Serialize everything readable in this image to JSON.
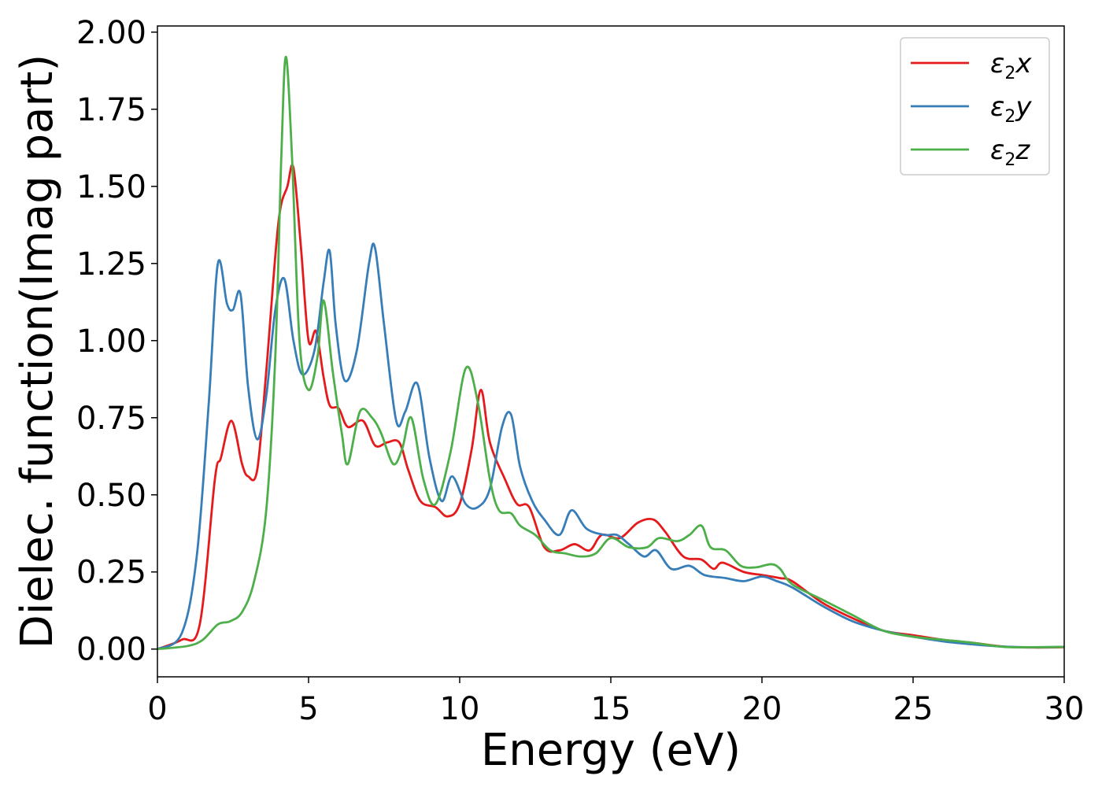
{
  "chart_data": {
    "type": "line",
    "xlabel": "Energy (eV)",
    "ylabel": "Dielec. function(Imag part)",
    "xlim": [
      0,
      30
    ],
    "ylim": [
      -0.09,
      2.02
    ],
    "xticks": [
      0,
      5,
      10,
      15,
      20,
      25,
      30
    ],
    "yticks": [
      0.0,
      0.25,
      0.5,
      0.75,
      1.0,
      1.25,
      1.5,
      1.75,
      2.0
    ],
    "xtick_labels": [
      "0",
      "5",
      "10",
      "15",
      "20",
      "25",
      "30"
    ],
    "ytick_labels": [
      "0.00",
      "0.25",
      "0.50",
      "0.75",
      "1.00",
      "1.25",
      "1.50",
      "1.75",
      "2.00"
    ],
    "grid": false,
    "legend_position": "top-right",
    "series": [
      {
        "name": "ε₂x",
        "legend": {
          "symbol": "ε",
          "sub": "2",
          "var": "x"
        },
        "color": "#e41a1c",
        "points": [
          [
            0,
            0.0
          ],
          [
            0.8,
            0.03
          ],
          [
            1.4,
            0.08
          ],
          [
            1.9,
            0.55
          ],
          [
            2.1,
            0.62
          ],
          [
            2.45,
            0.74
          ],
          [
            2.8,
            0.6
          ],
          [
            3.0,
            0.56
          ],
          [
            3.3,
            0.58
          ],
          [
            3.6,
            0.9
          ],
          [
            4.0,
            1.38
          ],
          [
            4.3,
            1.5
          ],
          [
            4.5,
            1.56
          ],
          [
            4.75,
            1.3
          ],
          [
            5.0,
            1.0
          ],
          [
            5.25,
            1.03
          ],
          [
            5.5,
            0.88
          ],
          [
            5.7,
            0.79
          ],
          [
            6.0,
            0.78
          ],
          [
            6.3,
            0.72
          ],
          [
            6.8,
            0.74
          ],
          [
            7.2,
            0.66
          ],
          [
            7.6,
            0.67
          ],
          [
            8.0,
            0.67
          ],
          [
            8.3,
            0.58
          ],
          [
            8.7,
            0.48
          ],
          [
            9.2,
            0.46
          ],
          [
            9.6,
            0.43
          ],
          [
            10.0,
            0.47
          ],
          [
            10.4,
            0.65
          ],
          [
            10.7,
            0.84
          ],
          [
            11.0,
            0.67
          ],
          [
            11.5,
            0.55
          ],
          [
            11.9,
            0.47
          ],
          [
            12.3,
            0.46
          ],
          [
            12.8,
            0.33
          ],
          [
            13.3,
            0.32
          ],
          [
            13.8,
            0.34
          ],
          [
            14.3,
            0.32
          ],
          [
            14.7,
            0.37
          ],
          [
            15.3,
            0.36
          ],
          [
            15.9,
            0.41
          ],
          [
            16.4,
            0.42
          ],
          [
            16.8,
            0.38
          ],
          [
            17.4,
            0.3
          ],
          [
            18.0,
            0.29
          ],
          [
            18.4,
            0.26
          ],
          [
            18.7,
            0.28
          ],
          [
            19.4,
            0.25
          ],
          [
            20.0,
            0.24
          ],
          [
            20.6,
            0.23
          ],
          [
            21.0,
            0.22
          ],
          [
            22.0,
            0.15
          ],
          [
            23.0,
            0.1
          ],
          [
            24.0,
            0.06
          ],
          [
            25.0,
            0.045
          ],
          [
            26.0,
            0.03
          ],
          [
            27.0,
            0.02
          ],
          [
            28.0,
            0.008
          ],
          [
            29.0,
            0.005
          ],
          [
            30,
            0.006
          ]
        ]
      },
      {
        "name": "ε₂y",
        "legend": {
          "symbol": "ε",
          "sub": "2",
          "var": "y"
        },
        "color": "#377eb8",
        "points": [
          [
            0,
            0.0
          ],
          [
            0.8,
            0.05
          ],
          [
            1.3,
            0.3
          ],
          [
            1.7,
            0.8
          ],
          [
            2.0,
            1.25
          ],
          [
            2.3,
            1.12
          ],
          [
            2.5,
            1.1
          ],
          [
            2.75,
            1.15
          ],
          [
            3.0,
            0.85
          ],
          [
            3.3,
            0.68
          ],
          [
            3.6,
            0.82
          ],
          [
            3.9,
            1.1
          ],
          [
            4.2,
            1.2
          ],
          [
            4.5,
            1.0
          ],
          [
            4.8,
            0.89
          ],
          [
            5.2,
            0.97
          ],
          [
            5.5,
            1.19
          ],
          [
            5.7,
            1.29
          ],
          [
            5.9,
            1.05
          ],
          [
            6.2,
            0.87
          ],
          [
            6.6,
            0.97
          ],
          [
            7.0,
            1.25
          ],
          [
            7.2,
            1.3
          ],
          [
            7.5,
            1.05
          ],
          [
            7.9,
            0.74
          ],
          [
            8.2,
            0.77
          ],
          [
            8.6,
            0.86
          ],
          [
            9.0,
            0.62
          ],
          [
            9.4,
            0.48
          ],
          [
            9.75,
            0.56
          ],
          [
            10.2,
            0.47
          ],
          [
            10.6,
            0.46
          ],
          [
            11.0,
            0.52
          ],
          [
            11.4,
            0.72
          ],
          [
            11.7,
            0.76
          ],
          [
            12.0,
            0.59
          ],
          [
            12.4,
            0.48
          ],
          [
            12.8,
            0.42
          ],
          [
            13.3,
            0.37
          ],
          [
            13.7,
            0.45
          ],
          [
            14.2,
            0.39
          ],
          [
            14.8,
            0.37
          ],
          [
            15.2,
            0.37
          ],
          [
            15.6,
            0.34
          ],
          [
            16.1,
            0.3
          ],
          [
            16.5,
            0.32
          ],
          [
            17.0,
            0.26
          ],
          [
            17.6,
            0.27
          ],
          [
            18.1,
            0.24
          ],
          [
            18.8,
            0.23
          ],
          [
            19.4,
            0.22
          ],
          [
            20.0,
            0.235
          ],
          [
            20.5,
            0.22
          ],
          [
            21.0,
            0.2
          ],
          [
            22.0,
            0.14
          ],
          [
            23.0,
            0.09
          ],
          [
            24.0,
            0.06
          ],
          [
            25.0,
            0.04
          ],
          [
            26.0,
            0.025
          ],
          [
            27.0,
            0.015
          ],
          [
            28.0,
            0.008
          ],
          [
            29.0,
            0.006
          ],
          [
            30,
            0.007
          ]
        ]
      },
      {
        "name": "ε₂z",
        "legend": {
          "symbol": "ε",
          "sub": "2",
          "var": "z"
        },
        "color": "#4daf4a",
        "points": [
          [
            0,
            0.0
          ],
          [
            1.0,
            0.01
          ],
          [
            1.5,
            0.03
          ],
          [
            2.0,
            0.08
          ],
          [
            2.4,
            0.09
          ],
          [
            2.8,
            0.12
          ],
          [
            3.2,
            0.22
          ],
          [
            3.6,
            0.45
          ],
          [
            3.9,
            0.95
          ],
          [
            4.1,
            1.6
          ],
          [
            4.25,
            1.92
          ],
          [
            4.45,
            1.6
          ],
          [
            4.7,
            1.0
          ],
          [
            5.0,
            0.84
          ],
          [
            5.3,
            0.95
          ],
          [
            5.5,
            1.13
          ],
          [
            5.8,
            0.9
          ],
          [
            6.1,
            0.7
          ],
          [
            6.3,
            0.6
          ],
          [
            6.7,
            0.77
          ],
          [
            7.1,
            0.75
          ],
          [
            7.4,
            0.7
          ],
          [
            7.8,
            0.6
          ],
          [
            8.1,
            0.65
          ],
          [
            8.4,
            0.75
          ],
          [
            8.8,
            0.55
          ],
          [
            9.2,
            0.47
          ],
          [
            9.7,
            0.64
          ],
          [
            10.2,
            0.91
          ],
          [
            10.6,
            0.8
          ],
          [
            11.0,
            0.55
          ],
          [
            11.3,
            0.45
          ],
          [
            11.7,
            0.44
          ],
          [
            12.0,
            0.4
          ],
          [
            12.5,
            0.37
          ],
          [
            13.0,
            0.32
          ],
          [
            13.5,
            0.31
          ],
          [
            14.0,
            0.3
          ],
          [
            14.5,
            0.31
          ],
          [
            15.0,
            0.36
          ],
          [
            15.6,
            0.33
          ],
          [
            16.2,
            0.33
          ],
          [
            16.6,
            0.36
          ],
          [
            17.2,
            0.35
          ],
          [
            17.6,
            0.37
          ],
          [
            18.0,
            0.4
          ],
          [
            18.3,
            0.33
          ],
          [
            18.8,
            0.32
          ],
          [
            19.3,
            0.27
          ],
          [
            19.8,
            0.265
          ],
          [
            20.3,
            0.275
          ],
          [
            20.6,
            0.26
          ],
          [
            21.0,
            0.21
          ],
          [
            22.0,
            0.16
          ],
          [
            23.0,
            0.11
          ],
          [
            24.0,
            0.06
          ],
          [
            25.0,
            0.04
          ],
          [
            26.0,
            0.03
          ],
          [
            27.0,
            0.02
          ],
          [
            28.0,
            0.007
          ],
          [
            29.0,
            0.006
          ],
          [
            30,
            0.007
          ]
        ]
      }
    ]
  }
}
